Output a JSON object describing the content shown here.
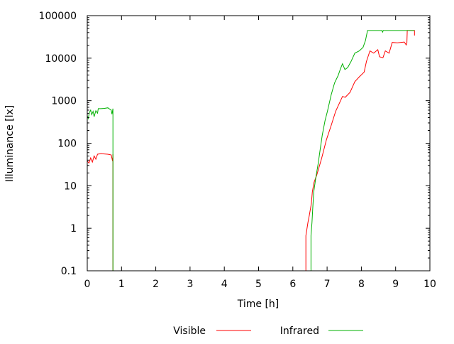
{
  "chart_data": {
    "type": "line",
    "title": "",
    "xlabel": "Time [h]",
    "ylabel": "Illuminance [lx]",
    "xlim": [
      0,
      10
    ],
    "ylim": [
      0.1,
      100000
    ],
    "yscale": "log",
    "grid": false,
    "legend_position": "bottom",
    "xticks": [
      "0",
      "1",
      "2",
      "3",
      "4",
      "5",
      "6",
      "7",
      "8",
      "9",
      "10"
    ],
    "yticks": [
      "0.1",
      "1",
      "10",
      "100",
      "1000",
      "10000",
      "100000"
    ],
    "series": [
      {
        "name": "Visible",
        "color": "#ff0000",
        "x": [
          0.0,
          0.05,
          0.1,
          0.15,
          0.2,
          0.25,
          0.3,
          0.4,
          0.5,
          0.6,
          0.7,
          0.74,
          0.75,
          0.75,
          null,
          6.38,
          6.38,
          6.44,
          6.48,
          6.54,
          6.57,
          6.62,
          6.7,
          6.84,
          6.98,
          7.12,
          7.25,
          7.45,
          7.53,
          7.67,
          7.81,
          7.94,
          8.08,
          8.15,
          8.25,
          8.36,
          8.48,
          8.53,
          8.63,
          8.7,
          8.81,
          8.9,
          9.05,
          9.25,
          9.31,
          9.33,
          9.34,
          9.55,
          9.55
        ],
        "y": [
          38,
          34,
          45,
          36,
          50,
          42,
          55,
          57,
          56,
          55,
          53,
          38,
          55,
          0,
          null,
          0,
          0.67,
          1.37,
          2,
          3.8,
          7.2,
          12,
          18,
          44,
          120,
          263,
          565,
          1260,
          1200,
          1580,
          2800,
          3640,
          4700,
          8400,
          14800,
          13100,
          15800,
          10800,
          10200,
          14800,
          13100,
          23400,
          23000,
          24000,
          20500,
          23000,
          44700,
          44700,
          34000
        ]
      },
      {
        "name": "Infrared",
        "color": "#00b000",
        "x": [
          0.0,
          0.03,
          0.06,
          0.1,
          0.13,
          0.17,
          0.2,
          0.25,
          0.3,
          0.32,
          0.4,
          0.5,
          0.6,
          0.7,
          0.72,
          0.75,
          0.75,
          null,
          6.53,
          6.53,
          6.56,
          6.58,
          6.61,
          6.67,
          6.74,
          6.8,
          6.86,
          6.94,
          7.01,
          7.12,
          7.22,
          7.32,
          7.39,
          7.45,
          7.52,
          7.6,
          7.7,
          7.81,
          7.94,
          8.05,
          8.12,
          8.18,
          8.6,
          8.62,
          8.64,
          9.55
        ],
        "y": [
          440,
          380,
          520,
          600,
          470,
          560,
          420,
          580,
          510,
          650,
          650,
          660,
          680,
          600,
          480,
          650,
          0,
          null,
          0,
          0.67,
          1.37,
          2.8,
          7.2,
          15.5,
          33,
          72,
          155,
          340,
          565,
          1380,
          2630,
          3890,
          5600,
          7400,
          5400,
          6000,
          8400,
          13100,
          14800,
          18000,
          26000,
          44700,
          44700,
          41000,
          44700,
          44700
        ]
      }
    ]
  }
}
